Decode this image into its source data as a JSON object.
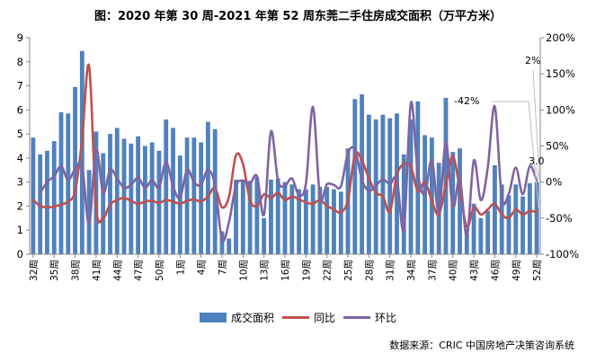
{
  "title": "图：2020 年第 30 周-2021 年第 52 周东莞二手住房成交面积（万平方米）",
  "source": "数据来源：CRIC 中国房地产决策咨询系统",
  "colors": {
    "bar": "#4F81BD",
    "yoy_line": "#C0504D",
    "wow_line": "#8064A2",
    "axis": "#898989",
    "leader_line": "#BFBFBF",
    "text": "#000000"
  },
  "legend": {
    "area_label": "成交面积",
    "yoy_label": "同比",
    "wow_label": "环比"
  },
  "callouts": {
    "yoy_last": "-42%",
    "wow_last": "2%",
    "area_last": "3.0"
  },
  "chart_data": {
    "type": "combo (bar + 2 smoothed lines)",
    "title": "图：2020 年第 30 周-2021 年第 52 周东莞二手住房成交面积（万平方米）",
    "categories": [
      "2020W32",
      "2020W33",
      "2020W34",
      "2020W35",
      "2020W36",
      "2020W37",
      "2020W38",
      "2020W39",
      "2020W40",
      "2020W41",
      "2020W42",
      "2020W43",
      "2020W44",
      "2020W45",
      "2020W46",
      "2020W47",
      "2020W48",
      "2020W49",
      "2020W50",
      "2020W51",
      "2020W52",
      "2021W1",
      "2021W2",
      "2021W3",
      "2021W4",
      "2021W5",
      "2021W6",
      "2021W7",
      "2021W8",
      "2021W9",
      "2021W10",
      "2021W11",
      "2021W12",
      "2021W13",
      "2021W14",
      "2021W15",
      "2021W16",
      "2021W17",
      "2021W18",
      "2021W19",
      "2021W20",
      "2021W21",
      "2021W22",
      "2021W23",
      "2021W24",
      "2021W25",
      "2021W26",
      "2021W27",
      "2021W28",
      "2021W29",
      "2021W30",
      "2021W31",
      "2021W32",
      "2021W33",
      "2021W34",
      "2021W35",
      "2021W36",
      "2021W37",
      "2021W38",
      "2021W39",
      "2021W40",
      "2021W41",
      "2021W42",
      "2021W43",
      "2021W44",
      "2021W45",
      "2021W46",
      "2021W47",
      "2021W48",
      "2021W49",
      "2021W50",
      "2021W51",
      "2021W52"
    ],
    "x_tick_labels": [
      "32周",
      "35周",
      "38周",
      "41周",
      "44周",
      "47周",
      "50周",
      "1周",
      "4周",
      "7周",
      "10周",
      "13周",
      "16周",
      "19周",
      "22周",
      "25周",
      "28周",
      "31周",
      "34周",
      "37周",
      "40周",
      "43周",
      "46周",
      "49周",
      "52周"
    ],
    "x_tick_step": 3,
    "series": [
      {
        "name": "成交面积",
        "type": "bar",
        "axis": "left",
        "unit": "万平方米",
        "values": [
          4.85,
          4.15,
          4.3,
          4.7,
          5.9,
          5.85,
          6.95,
          8.45,
          3.5,
          5.1,
          4.2,
          5.0,
          5.25,
          4.8,
          4.6,
          4.9,
          4.5,
          4.65,
          4.3,
          5.6,
          5.25,
          4.1,
          4.85,
          4.85,
          4.65,
          5.5,
          5.2,
          0.95,
          0.65,
          3.1,
          3.1,
          3.05,
          3.2,
          1.5,
          3.1,
          3.15,
          3.0,
          2.9,
          2.7,
          2.7,
          2.9,
          2.8,
          2.8,
          2.7,
          2.6,
          4.4,
          6.45,
          6.65,
          5.8,
          5.6,
          5.8,
          5.65,
          5.85,
          4.15,
          5.6,
          6.35,
          4.95,
          4.85,
          3.8,
          6.5,
          4.25,
          4.4,
          1.05,
          2.1,
          1.5,
          1.8,
          3.7,
          2.9,
          2.45,
          2.9,
          2.4,
          2.95,
          3.0
        ]
      },
      {
        "name": "同比",
        "type": "line",
        "axis": "right",
        "unit": "%",
        "values": [
          -25,
          -33,
          -35,
          -34,
          -31,
          -27,
          -12,
          60,
          161,
          -35,
          -50,
          -31,
          -25,
          -22,
          -26,
          -30,
          -27,
          -26,
          -29,
          -25,
          -27,
          -30,
          -26,
          -24,
          -27,
          -20,
          -8,
          -35,
          -20,
          37,
          25,
          -25,
          -33,
          -17,
          -22,
          -15,
          -25,
          -20,
          -24,
          -28,
          -30,
          -25,
          -33,
          -38,
          -42,
          -25,
          38,
          30,
          5,
          -15,
          -20,
          -41,
          10,
          25,
          22,
          -13,
          0,
          -26,
          -45,
          -3,
          36,
          -10,
          -62,
          -35,
          -45,
          -38,
          -30,
          -45,
          -50,
          -38,
          -45,
          -40,
          -42
        ]
      },
      {
        "name": "环比",
        "type": "line",
        "axis": "right",
        "unit": "%",
        "values": [
          null,
          -15,
          0,
          8,
          22,
          3,
          18,
          22,
          -58,
          45,
          -15,
          17,
          5,
          -8,
          -4,
          6,
          -8,
          3,
          -8,
          28,
          -6,
          -22,
          17,
          0,
          -4,
          17,
          -5,
          -80,
          -55,
          -5,
          2,
          -2,
          8,
          -45,
          70,
          2,
          -5,
          5,
          -18,
          -2,
          104,
          -20,
          -3,
          -4,
          -6,
          40,
          45,
          3,
          -12,
          -5,
          4,
          -3,
          4,
          -65,
          110,
          12,
          -17,
          31,
          -43,
          55,
          -35,
          5,
          -75,
          30,
          -25,
          20,
          105,
          -22,
          -16,
          20,
          -17,
          22,
          2
        ]
      }
    ],
    "left_axis": {
      "min": 0,
      "max": 9,
      "ticks": [
        "0",
        "1",
        "2",
        "3",
        "4",
        "5",
        "6",
        "7",
        "8",
        "9"
      ]
    },
    "right_axis": {
      "min": -100,
      "max": 200,
      "ticks": [
        "-100%",
        "-50%",
        "0%",
        "50%",
        "100%",
        "150%",
        "200%"
      ]
    },
    "annotations": [
      {
        "text": "-42%",
        "series": "同比",
        "at": "2021W52"
      },
      {
        "text": "2%",
        "series": "环比",
        "at": "2021W52"
      },
      {
        "text": "3.0",
        "series": "成交面积",
        "at": "2021W52"
      }
    ],
    "grid": false,
    "legend_position": "bottom"
  }
}
